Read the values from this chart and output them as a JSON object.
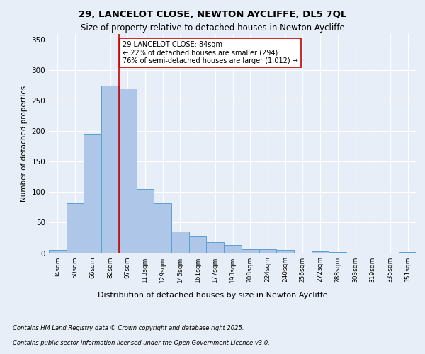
{
  "title_line1": "29, LANCELOT CLOSE, NEWTON AYCLIFFE, DL5 7QL",
  "title_line2": "Size of property relative to detached houses in Newton Aycliffe",
  "xlabel": "Distribution of detached houses by size in Newton Aycliffe",
  "ylabel": "Number of detached properties",
  "categories": [
    "34sqm",
    "50sqm",
    "66sqm",
    "82sqm",
    "97sqm",
    "113sqm",
    "129sqm",
    "145sqm",
    "161sqm",
    "177sqm",
    "193sqm",
    "208sqm",
    "224sqm",
    "240sqm",
    "256sqm",
    "272sqm",
    "288sqm",
    "303sqm",
    "319sqm",
    "335sqm",
    "351sqm"
  ],
  "values": [
    5,
    82,
    196,
    275,
    270,
    105,
    82,
    35,
    27,
    18,
    13,
    6,
    6,
    5,
    0,
    3,
    2,
    0,
    1,
    0,
    2
  ],
  "bar_color": "#aec6e8",
  "bar_edge_color": "#5a9fd4",
  "vline_color": "#cc0000",
  "annotation_text": "29 LANCELOT CLOSE: 84sqm\n← 22% of detached houses are smaller (294)\n76% of semi-detached houses are larger (1,012) →",
  "annotation_box_color": "#ffffff",
  "annotation_border_color": "#cc0000",
  "ylim": [
    0,
    360
  ],
  "yticks": [
    0,
    50,
    100,
    150,
    200,
    250,
    300,
    350
  ],
  "footer_line1": "Contains HM Land Registry data © Crown copyright and database right 2025.",
  "footer_line2": "Contains public sector information licensed under the Open Government Licence v3.0.",
  "background_color": "#e8eef7",
  "plot_background": "#e8eef7"
}
